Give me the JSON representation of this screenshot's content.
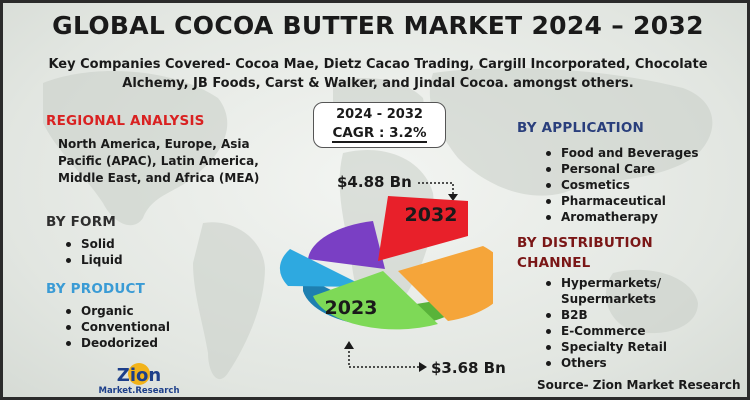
{
  "title": "GLOBAL COCOA BUTTER MARKET 2024 – 2032",
  "subtitle": "Key Companies Covered- Cocoa Mae, Dietz Cacao Trading, Cargill Incorporated, Chocolate Alchemy, JB Foods, Carst & Walker, and Jindal Cocoa. amongst others.",
  "regional": {
    "heading": "REGIONAL ANALYSIS",
    "text": "North America, Europe, Asia Pacific (APAC), Latin America, Middle East, and Africa (MEA)"
  },
  "form": {
    "heading": "BY FORM",
    "items": [
      "Solid",
      "Liquid"
    ]
  },
  "product": {
    "heading": "BY PRODUCT",
    "items": [
      "Organic",
      "Conventional",
      "Deodorized"
    ]
  },
  "cagr": {
    "years": "2024 - 2032",
    "value": "CAGR : 3.2%"
  },
  "values": {
    "v2032": "$4.88 Bn",
    "v2023": "$3.68 Bn"
  },
  "pie": {
    "label_2032": "2032",
    "label_2023": "2023",
    "colors": {
      "red": "#e8202a",
      "orange": "#f5a53a",
      "green": "#7ed957",
      "blue": "#2ea9e0",
      "purple": "#7a3fc4"
    }
  },
  "application": {
    "heading": "BY APPLICATION",
    "items": [
      "Food and Beverages",
      "Personal Care",
      "Cosmetics",
      "Pharmaceutical",
      "Aromatherapy"
    ]
  },
  "distribution": {
    "heading_line1": "BY DISTRIBUTION",
    "heading_line2": "CHANNEL",
    "items": [
      "Hypermarkets/ Supermarkets",
      "B2B",
      "E-Commerce",
      "Specialty Retail",
      "Others"
    ]
  },
  "logo": {
    "line1": "Zion",
    "line2": "Market.Research"
  },
  "source": "Source- Zion Market Research"
}
